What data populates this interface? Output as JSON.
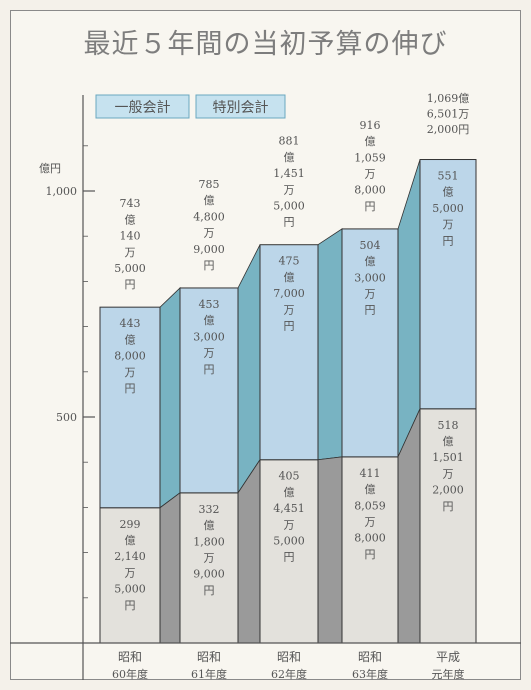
{
  "chart_data": {
    "type": "bar",
    "title": "最近５年間の当初予算の伸び",
    "ylabel": "億円",
    "ylim": [
      0,
      1160
    ],
    "y_ticks": [
      500,
      1000
    ],
    "y_tick_labels": [
      "500",
      "1,000"
    ],
    "categories": [
      {
        "line1": "昭和",
        "line2": "60年度"
      },
      {
        "line1": "昭和",
        "line2": "61年度"
      },
      {
        "line1": "昭和",
        "line2": "62年度"
      },
      {
        "line1": "昭和",
        "line2": "63年度"
      },
      {
        "line1": "平成",
        "line2": "元年度"
      }
    ],
    "legend": [
      "一般会計",
      "特別会計"
    ],
    "series": [
      {
        "name": "一般会計",
        "values": [
          299.214,
          332.18,
          405.4451,
          411.8059,
          518.1501
        ],
        "labels": [
          [
            "299",
            "億",
            "2,140",
            "万",
            "5,000",
            "円"
          ],
          [
            "332",
            "億",
            "1,800",
            "万",
            "9,000",
            "円"
          ],
          [
            "405",
            "億",
            "4,451",
            "万",
            "5,000",
            "円"
          ],
          [
            "411",
            "億",
            "8,059",
            "万",
            "8,000",
            "円"
          ],
          [
            "518",
            "億",
            "1,501",
            "万",
            "2,000",
            "円"
          ]
        ]
      },
      {
        "name": "特別会計",
        "values": [
          443.8,
          453.3,
          475.7,
          504.3,
          551.5
        ],
        "labels": [
          [
            "443",
            "億",
            "8,000",
            "万",
            "円"
          ],
          [
            "453",
            "億",
            "3,000",
            "万",
            "円"
          ],
          [
            "475",
            "億",
            "7,000",
            "万",
            "円"
          ],
          [
            "504",
            "億",
            "3,000",
            "万",
            "円"
          ],
          [
            "551",
            "億",
            "5,000",
            "万",
            "円"
          ]
        ]
      }
    ],
    "totals": [
      743.014,
      785.48,
      881.1451,
      916.1059,
      1069.6501
    ],
    "total_labels": [
      [
        "743",
        "億",
        "140",
        "万",
        "5,000",
        "円"
      ],
      [
        "785",
        "億",
        "4,800",
        "万",
        "9,000",
        "円"
      ],
      [
        "881",
        "億",
        "1,451",
        "万",
        "5,000",
        "円"
      ],
      [
        "916",
        "億",
        "1,059",
        "万",
        "8,000",
        "円"
      ],
      [
        "1,069億",
        "6,501万",
        "2,000円"
      ]
    ],
    "colors": {
      "general": "#e3e1dc",
      "special": "#bcd6e9",
      "general_side": "#9a9a9a",
      "special_side": "#78b3c2"
    }
  }
}
